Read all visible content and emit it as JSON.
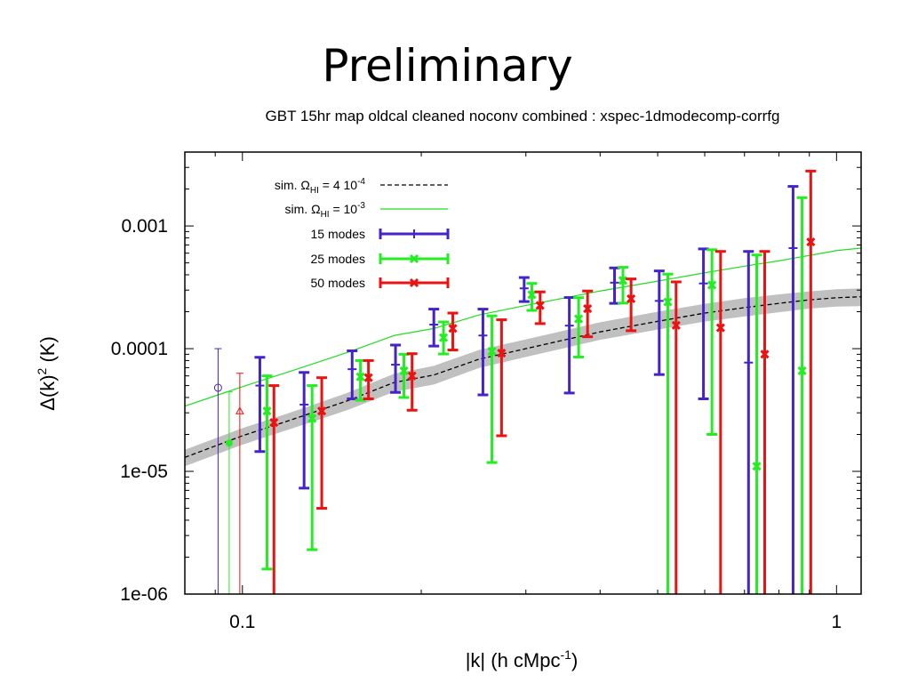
{
  "slide": {
    "title": "Preliminary"
  },
  "chart_data": {
    "type": "scatter",
    "title": "GBT 15hr map oldcal cleaned noconv combined : xspec-1dmodecomp-corrfg",
    "xlabel": {
      "main": "|k| (h cMpc",
      "sup": "-1",
      "tail": ")"
    },
    "ylabel": {
      "main": "Δ(k)",
      "sup": "2",
      "tail": " (K)"
    },
    "xscale": "log",
    "yscale": "log",
    "xlim": [
      0.08,
      1.1
    ],
    "ylim": [
      1e-06,
      0.004
    ],
    "x_ticks": [
      {
        "value": 0.1,
        "label": "0.1"
      },
      {
        "value": 1,
        "label": "1"
      }
    ],
    "y_ticks": [
      {
        "value": 0.001,
        "label": "0.001"
      },
      {
        "value": 0.0001,
        "label": "0.0001"
      },
      {
        "value": 1e-05,
        "label": "1e-05"
      },
      {
        "value": 1e-06,
        "label": "1e-06"
      }
    ],
    "legend": {
      "position": "top-left",
      "entries": [
        {
          "label": "sim. Ω",
          "sub": "HI",
          "mid": " = 4 10",
          "sup": "-4",
          "style": "dashed",
          "color": "#000000"
        },
        {
          "label": "sim. Ω",
          "sub": "HI",
          "mid": " = 10",
          "sup": "-3",
          "style": "line",
          "color": "#22dd22"
        },
        {
          "label": "15 modes",
          "style": "errorbar",
          "color": "#4422cc",
          "marker": "plus"
        },
        {
          "label": "25 modes",
          "style": "errorbar",
          "color": "#22ee22",
          "marker": "x"
        },
        {
          "label": "50 modes",
          "style": "errorbar",
          "color": "#ee1111",
          "marker": "x"
        }
      ]
    },
    "band": {
      "color": "#c0c0c0",
      "x": [
        0.08,
        0.1,
        0.12,
        0.15,
        0.18,
        0.21,
        0.25,
        0.3,
        0.4,
        0.5,
        0.6,
        0.7,
        0.8,
        0.9,
        1.0,
        1.1
      ],
      "low": [
        1.1e-05,
        1.65e-05,
        2.2e-05,
        3.15e-05,
        4.45e-05,
        5.1e-05,
        6.95e-05,
        8.55e-05,
        0.000118,
        0.000143,
        0.000166,
        0.000183,
        0.000198,
        0.000212,
        0.00022,
        0.000222
      ],
      "high": [
        1.5e-05,
        2.25e-05,
        3e-05,
        4.35e-05,
        6.25e-05,
        7.25e-05,
        9.75e-05,
        0.000119,
        0.000164,
        0.0002,
        0.000232,
        0.000258,
        0.000277,
        0.000293,
        0.000305,
        0.00031
      ]
    },
    "sim_4e4": {
      "color": "#000000",
      "x": [
        0.08,
        0.1,
        0.12,
        0.15,
        0.18,
        0.21,
        0.25,
        0.3,
        0.4,
        0.5,
        0.6,
        0.7,
        0.8,
        0.9,
        1.0,
        1.1
      ],
      "y": [
        1.3e-05,
        1.95e-05,
        2.6e-05,
        3.75e-05,
        5.3e-05,
        6.1e-05,
        8.2e-05,
        0.0001,
        0.000137,
        0.000167,
        0.000195,
        0.000216,
        0.000234,
        0.00025,
        0.00026,
        0.000265
      ]
    },
    "sim_1e3": {
      "color": "#22dd22",
      "x": [
        0.08,
        0.1,
        0.12,
        0.15,
        0.18,
        0.21,
        0.25,
        0.3,
        0.4,
        0.5,
        0.6,
        0.7,
        0.8,
        0.9,
        1.0,
        1.1
      ],
      "y": [
        3.4e-05,
        4.9e-05,
        6.5e-05,
        9.3e-05,
        0.000128,
        0.000146,
        0.000188,
        0.000225,
        0.000295,
        0.000355,
        0.000415,
        0.00047,
        0.00052,
        0.000575,
        0.00063,
        0.00066
      ]
    },
    "series": [
      {
        "name": "15 modes",
        "color": "#4422cc",
        "marker": "plus",
        "points": [
          {
            "x": 0.107,
            "y": 5e-05,
            "lo": 1.45e-05,
            "hi": 8.5e-05
          },
          {
            "x": 0.127,
            "y": 3.5e-05,
            "lo": 7.3e-06,
            "hi": 6.4e-05
          },
          {
            "x": 0.153,
            "y": 6.8e-05,
            "lo": 3.9e-05,
            "hi": 9.6e-05
          },
          {
            "x": 0.181,
            "y": 7.4e-05,
            "lo": 4.4e-05,
            "hi": 0.000107
          },
          {
            "x": 0.21,
            "y": 0.000157,
            "lo": 0.000105,
            "hi": 0.00021
          },
          {
            "x": 0.254,
            "y": 0.000128,
            "lo": 4.2e-05,
            "hi": 0.00021
          },
          {
            "x": 0.298,
            "y": 0.00031,
            "lo": 0.000242,
            "hi": 0.00038
          },
          {
            "x": 0.355,
            "y": 0.000154,
            "lo": 4.35e-05,
            "hi": 0.000261
          },
          {
            "x": 0.423,
            "y": 0.000345,
            "lo": 0.000234,
            "hi": 0.000455
          },
          {
            "x": 0.503,
            "y": 0.000245,
            "lo": 6.15e-05,
            "hi": 0.00043
          },
          {
            "x": 0.597,
            "y": 0.00034,
            "lo": 3.9e-05,
            "hi": 0.00065
          },
          {
            "x": 0.711,
            "y": 7.7e-05,
            "lo": 1e-06,
            "hi": 0.00062
          },
          {
            "x": 0.845,
            "y": 0.00066,
            "lo": 1e-06,
            "hi": 0.0021
          }
        ]
      },
      {
        "name": "25 modes",
        "color": "#22ee22",
        "marker": "x",
        "points": [
          {
            "x": 0.11,
            "y": 3.1e-05,
            "lo": 1.6e-06,
            "hi": 6e-05
          },
          {
            "x": 0.131,
            "y": 2.7e-05,
            "lo": 2.3e-06,
            "hi": 5e-05
          },
          {
            "x": 0.158,
            "y": 5.9e-05,
            "lo": 3.8e-05,
            "hi": 8e-05
          },
          {
            "x": 0.187,
            "y": 6.6e-05,
            "lo": 4e-05,
            "hi": 9e-05
          },
          {
            "x": 0.218,
            "y": 0.000123,
            "lo": 9.05e-05,
            "hi": 0.000165
          },
          {
            "x": 0.263,
            "y": 9.5e-05,
            "lo": 1.18e-05,
            "hi": 0.000185
          },
          {
            "x": 0.307,
            "y": 0.000275,
            "lo": 0.000205,
            "hi": 0.00034
          },
          {
            "x": 0.368,
            "y": 0.000175,
            "lo": 8.55e-05,
            "hi": 0.00026
          },
          {
            "x": 0.437,
            "y": 0.00036,
            "lo": 0.000235,
            "hi": 0.00046
          },
          {
            "x": 0.52,
            "y": 0.00024,
            "lo": 1e-06,
            "hi": 0.000405
          },
          {
            "x": 0.617,
            "y": 0.00033,
            "lo": 2e-05,
            "hi": 0.00064
          },
          {
            "x": 0.734,
            "y": 1.1e-05,
            "lo": 1e-06,
            "hi": 0.00058
          },
          {
            "x": 0.875,
            "y": 6.6e-05,
            "lo": 1e-06,
            "hi": 0.0017
          }
        ]
      },
      {
        "name": "50 modes",
        "color": "#ee1111",
        "marker": "x",
        "points": [
          {
            "x": 0.113,
            "y": 2.5e-05,
            "lo": 1e-06,
            "hi": 5e-05
          },
          {
            "x": 0.136,
            "y": 3.1e-05,
            "lo": 5e-06,
            "hi": 5.8e-05
          },
          {
            "x": 0.163,
            "y": 5.8e-05,
            "lo": 3.9e-05,
            "hi": 8e-05
          },
          {
            "x": 0.193,
            "y": 6e-05,
            "lo": 3.15e-05,
            "hi": 9.1e-05
          },
          {
            "x": 0.226,
            "y": 0.000146,
            "lo": 9.75e-05,
            "hi": 0.000195
          },
          {
            "x": 0.273,
            "y": 9.2e-05,
            "lo": 1.95e-05,
            "hi": 0.000172
          },
          {
            "x": 0.317,
            "y": 0.000225,
            "lo": 0.00016,
            "hi": 0.00029
          },
          {
            "x": 0.381,
            "y": 0.000212,
            "lo": 0.000125,
            "hi": 0.000295
          },
          {
            "x": 0.451,
            "y": 0.000255,
            "lo": 0.00014,
            "hi": 0.00037
          },
          {
            "x": 0.537,
            "y": 0.000155,
            "lo": 1e-06,
            "hi": 0.00035
          },
          {
            "x": 0.638,
            "y": 0.000148,
            "lo": 1e-06,
            "hi": 0.00062
          },
          {
            "x": 0.757,
            "y": 9e-05,
            "lo": 1e-06,
            "hi": 0.00062
          },
          {
            "x": 0.905,
            "y": 0.00074,
            "lo": 1e-06,
            "hi": 0.0028
          }
        ]
      }
    ],
    "special_points": [
      {
        "x": 0.091,
        "y": 4.8e-05,
        "lo": 1e-06,
        "hi": 0.0001,
        "color": "#4422cc",
        "marker": "open-circle"
      },
      {
        "x": 0.095,
        "y": 1.7e-05,
        "lo": 1e-06,
        "hi": 4.45e-05,
        "color": "#22ee22",
        "marker": "filled-circle"
      },
      {
        "x": 0.099,
        "y": 3.1e-05,
        "lo": 1e-06,
        "hi": 6.3e-05,
        "color": "#ee1111",
        "marker": "open-triangle"
      }
    ]
  }
}
